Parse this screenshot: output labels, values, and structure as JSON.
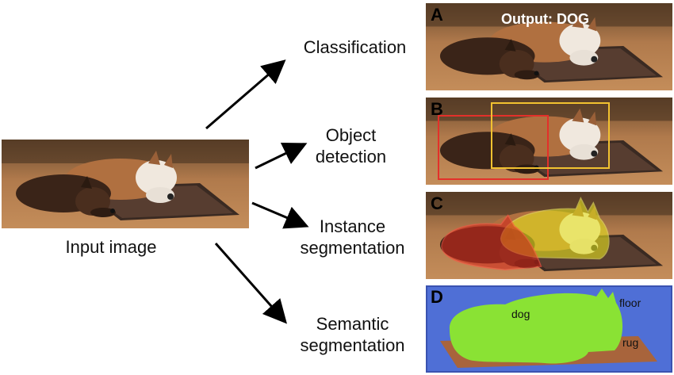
{
  "input": {
    "label": "Input image"
  },
  "tasks": [
    {
      "id": "A",
      "label_lines": [
        "Classification"
      ]
    },
    {
      "id": "B",
      "label_lines": [
        "Object",
        "detection"
      ]
    },
    {
      "id": "C",
      "label_lines": [
        "Instance",
        "segmentation"
      ]
    },
    {
      "id": "D",
      "label_lines": [
        "Semantic",
        "segmentation"
      ]
    }
  ],
  "panels": {
    "A": {
      "letter": "A",
      "output_text": "Output: DOG"
    },
    "B": {
      "letter": "B",
      "box_colors": [
        "#e3302a",
        "#f2c230"
      ]
    },
    "C": {
      "letter": "C",
      "mask_colors": [
        "#d22a1e",
        "#e6e21e"
      ]
    },
    "D": {
      "letter": "D",
      "class_labels": {
        "dog": "dog",
        "floor": "floor",
        "rug": "rug"
      },
      "colors": {
        "floor": "#4f6fd6",
        "dog": "#8ae234",
        "rug": "#a8643c"
      }
    }
  },
  "icons": [
    "arrow-icon"
  ]
}
